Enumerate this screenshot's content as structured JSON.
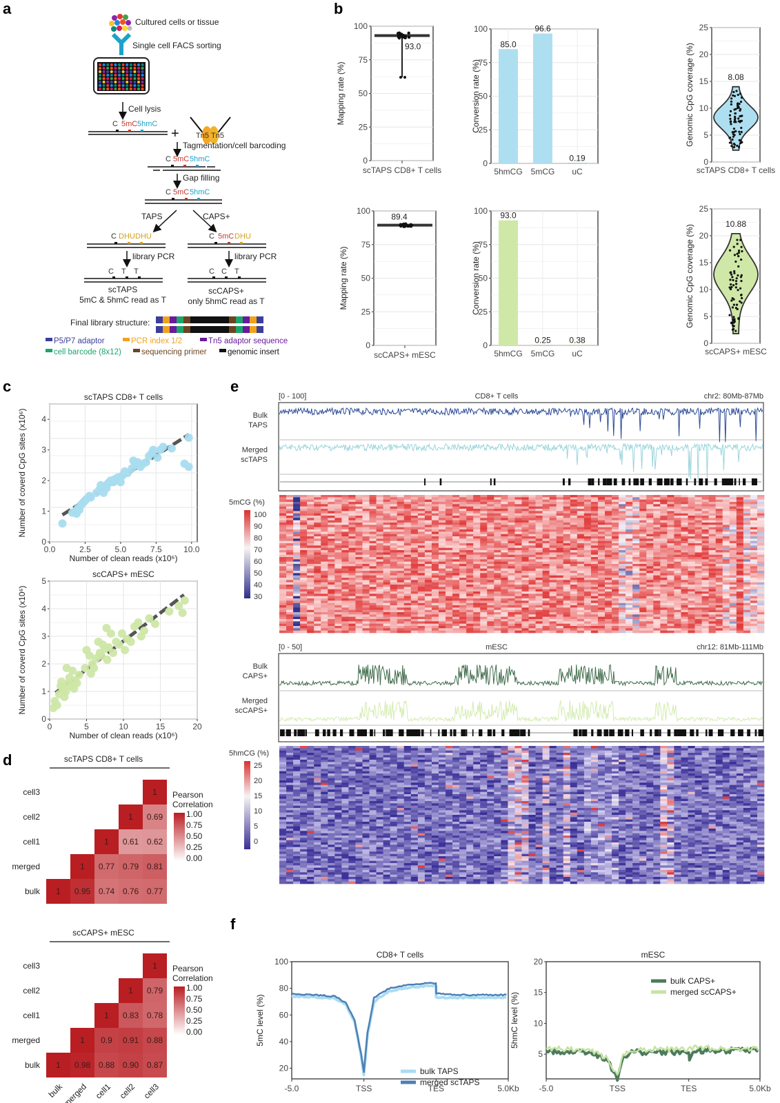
{
  "panels": {
    "a": {
      "letter": "a"
    },
    "b": {
      "letter": "b"
    },
    "c": {
      "letter": "c"
    },
    "d": {
      "letter": "d"
    },
    "e": {
      "letter": "e"
    },
    "f": {
      "letter": "f"
    }
  },
  "schematic": {
    "steps": {
      "cultured": "Cultured cells or tissue",
      "facs": "Single cell FACS sorting",
      "lysis": "Cell lysis",
      "tagmentation": "Tagmentation/cell barcoding",
      "gap": "Gap filling",
      "taps": "TAPS",
      "caps": "CAPS+",
      "pcr_left": "library PCR",
      "pcr_right": "library PCR",
      "final": "Final library structure:"
    },
    "bases": {
      "C": "C",
      "mC": "5mC",
      "hmC": "5hmC",
      "DHU": "DHU",
      "T": "T",
      "tn5a": "Tn5",
      "tn5b": "Tn5",
      "plus": "+"
    },
    "outcomes": {
      "left_title": "scTAPS",
      "left_sub": "5mC & 5hmC read as T",
      "right_title": "scCAPS+",
      "right_sub": "only 5hmC read as T"
    },
    "legend": [
      {
        "label": "P5/P7 adaptor",
        "color": "#3b3f9a"
      },
      {
        "label": "PCR index 1/2",
        "color": "#f0a21e"
      },
      {
        "label": "Tn5 adaptor sequence",
        "color": "#6a1b9a"
      },
      {
        "label": "cell barcode (8x12)",
        "color": "#1aa66b"
      },
      {
        "label": "sequencing primer",
        "color": "#6b4423"
      },
      {
        "label": "genomic insert",
        "color": "#111111"
      }
    ],
    "colors": {
      "mC": "#c0392b",
      "hmC": "#1aa3c9",
      "DHU": "#d4a017"
    }
  },
  "chart_data": [
    {
      "id": "b-mapping-taps",
      "type": "box",
      "title": "",
      "xlabel": "scTAPS CD8+ T cells",
      "ylabel": "Mapping rate (%)",
      "ylim": [
        0,
        100
      ],
      "yticks": [
        "0",
        "25",
        "50",
        "75",
        "100"
      ],
      "median": 93.0,
      "median_label": "93.0",
      "min": 62,
      "max": 95,
      "color": "#222222"
    },
    {
      "id": "b-conversion-taps",
      "type": "bar",
      "categories": [
        "5hmCG",
        "5mCG",
        "uC"
      ],
      "values": [
        85.0,
        96.6,
        0.19
      ],
      "labels": [
        "85.0",
        "96.6",
        "0.19"
      ],
      "ylabel": "Conversion rate (%)",
      "ylim": [
        0,
        100
      ],
      "yticks": [
        "0",
        "25",
        "50",
        "75",
        "100"
      ],
      "color": "#aedff0"
    },
    {
      "id": "b-coverage-taps",
      "type": "violin",
      "xlabel": "scTAPS CD8+ T cells",
      "ylabel": "Genomic CpG coverage (%)",
      "ylim": [
        0,
        25
      ],
      "yticks": [
        "0",
        "5",
        "10",
        "15",
        "20",
        "25"
      ],
      "median_label": "8.08",
      "range": [
        2.2,
        14.0
      ],
      "mode": 8.3,
      "color": "#aedff0"
    },
    {
      "id": "b-mapping-caps",
      "type": "box",
      "xlabel": "scCAPS+ mESC",
      "ylabel": "Mapping rate (%)",
      "ylim": [
        0,
        100
      ],
      "yticks": [
        "0",
        "25",
        "50",
        "75",
        "100"
      ],
      "median": 89.4,
      "median_label": "89.4",
      "min": 88,
      "max": 90.5,
      "color": "#222222"
    },
    {
      "id": "b-conversion-caps",
      "type": "bar",
      "categories": [
        "5hmCG",
        "5mCG",
        "uC"
      ],
      "values": [
        93.0,
        0.25,
        0.38
      ],
      "labels": [
        "93.0",
        "0.25",
        "0.38"
      ],
      "ylabel": "Conversion rate (%)",
      "ylim": [
        0,
        100
      ],
      "yticks": [
        "0",
        "25",
        "50",
        "75",
        "100"
      ],
      "color": "#cfe8a8"
    },
    {
      "id": "b-coverage-caps",
      "type": "violin",
      "xlabel": "scCAPS+ mESC",
      "ylabel": "Genomic CpG coverage (%)",
      "ylim": [
        0,
        25
      ],
      "yticks": [
        "0",
        "5",
        "10",
        "15",
        "20",
        "25"
      ],
      "median_label": "10.88",
      "range": [
        1.8,
        20.4
      ],
      "mode": 12.8,
      "color": "#cfe8a8"
    },
    {
      "id": "c-scatter-taps",
      "type": "scatter",
      "title": "scTAPS CD8+ T cells",
      "xlabel": "Number of clean reads (x10⁶)",
      "ylabel": "Number of coverd CpG sites (x10⁶)",
      "xlim": [
        0,
        10.4
      ],
      "ylim": [
        0,
        4.5
      ],
      "xticks": [
        "0.0",
        "2.5",
        "5.0",
        "7.5",
        "10.0"
      ],
      "yticks": [
        "0",
        "1",
        "2",
        "3",
        "4"
      ],
      "fit": [
        [
          0.9,
          0.88
        ],
        [
          9.8,
          3.5
        ]
      ],
      "color": "#a9dcef",
      "points": [
        [
          0.9,
          0.6
        ],
        [
          1.6,
          0.95
        ],
        [
          1.8,
          1.0
        ],
        [
          1.9,
          0.92
        ],
        [
          2.0,
          1.1
        ],
        [
          2.1,
          1.05
        ],
        [
          2.2,
          1.2
        ],
        [
          2.3,
          1.25
        ],
        [
          2.4,
          1.3
        ],
        [
          2.5,
          1.35
        ],
        [
          2.6,
          1.4
        ],
        [
          2.8,
          1.5
        ],
        [
          2.9,
          1.45
        ],
        [
          3.3,
          1.6
        ],
        [
          3.5,
          1.7
        ],
        [
          3.6,
          1.85
        ],
        [
          3.8,
          1.6
        ],
        [
          3.9,
          1.8
        ],
        [
          4.0,
          1.75
        ],
        [
          4.1,
          1.9
        ],
        [
          4.2,
          1.95
        ],
        [
          4.3,
          2.0
        ],
        [
          4.5,
          1.95
        ],
        [
          4.6,
          2.05
        ],
        [
          4.8,
          2.1
        ],
        [
          4.9,
          2.0
        ],
        [
          5.0,
          1.95
        ],
        [
          5.1,
          2.15
        ],
        [
          5.2,
          2.2
        ],
        [
          5.3,
          2.3
        ],
        [
          5.5,
          2.25
        ],
        [
          5.8,
          2.4
        ],
        [
          5.9,
          2.65
        ],
        [
          6.1,
          2.5
        ],
        [
          6.2,
          2.6
        ],
        [
          6.4,
          2.45
        ],
        [
          6.6,
          2.55
        ],
        [
          6.8,
          2.6
        ],
        [
          7.0,
          2.8
        ],
        [
          7.2,
          2.9
        ],
        [
          7.3,
          3.0
        ],
        [
          7.6,
          2.75
        ],
        [
          7.8,
          3.0
        ],
        [
          8.0,
          3.1
        ],
        [
          8.6,
          3.05
        ],
        [
          9.5,
          2.55
        ],
        [
          9.8,
          2.45
        ],
        [
          9.8,
          3.4
        ]
      ]
    },
    {
      "id": "c-scatter-caps",
      "type": "scatter",
      "title": "scCAPS+ mESC",
      "xlabel": "Number of clean reads (x10⁶)",
      "ylabel": "Number of coverd CpG sites (x10⁶)",
      "xlim": [
        0,
        20
      ],
      "ylim": [
        0,
        5
      ],
      "xticks": [
        "0",
        "5",
        "10",
        "15",
        "20"
      ],
      "yticks": [
        "0",
        "1",
        "2",
        "3",
        "4",
        "5"
      ],
      "fit": [
        [
          0.8,
          0.95
        ],
        [
          18.2,
          4.5
        ]
      ],
      "color": "#cde7a6",
      "points": [
        [
          0.5,
          0.4
        ],
        [
          0.7,
          0.65
        ],
        [
          1.0,
          0.5
        ],
        [
          1.3,
          0.9
        ],
        [
          1.5,
          1.2
        ],
        [
          1.6,
          1.35
        ],
        [
          1.8,
          1.1
        ],
        [
          2.0,
          0.8
        ],
        [
          2.2,
          1.0
        ],
        [
          2.3,
          1.85
        ],
        [
          2.5,
          1.3
        ],
        [
          2.7,
          1.5
        ],
        [
          2.9,
          1.2
        ],
        [
          3.1,
          1.75
        ],
        [
          3.3,
          1.1
        ],
        [
          3.5,
          1.4
        ],
        [
          3.7,
          1.3
        ],
        [
          4.0,
          1.6
        ],
        [
          4.8,
          1.85
        ],
        [
          5.0,
          2.5
        ],
        [
          5.4,
          2.3
        ],
        [
          5.6,
          1.65
        ],
        [
          5.8,
          2.0
        ],
        [
          6.0,
          1.85
        ],
        [
          6.3,
          2.2
        ],
        [
          6.6,
          2.8
        ],
        [
          6.8,
          2.4
        ],
        [
          7.0,
          2.3
        ],
        [
          7.2,
          2.7
        ],
        [
          7.5,
          2.55
        ],
        [
          7.7,
          3.3
        ],
        [
          7.8,
          2.15
        ],
        [
          8.0,
          2.6
        ],
        [
          8.3,
          3.1
        ],
        [
          8.6,
          2.4
        ],
        [
          9.0,
          2.8
        ],
        [
          9.4,
          2.7
        ],
        [
          9.8,
          3.1
        ],
        [
          10.2,
          2.5
        ],
        [
          10.5,
          2.9
        ],
        [
          11.0,
          2.8
        ],
        [
          11.5,
          3.35
        ],
        [
          12.0,
          3.5
        ],
        [
          12.4,
          3.0
        ],
        [
          12.8,
          3.2
        ],
        [
          13.5,
          3.65
        ],
        [
          14.3,
          3.45
        ],
        [
          16.2,
          3.9
        ],
        [
          17.5,
          4.1
        ],
        [
          18.0,
          3.85
        ],
        [
          18.3,
          4.3
        ]
      ]
    },
    {
      "id": "d-corr-taps",
      "type": "heatmap",
      "title": "scTAPS CD8+ T cells",
      "rows": [
        "cell3",
        "cell2",
        "cell1",
        "merged",
        "bulk"
      ],
      "cols": [
        "bulk",
        "merged",
        "cell1",
        "cell2",
        "cell3"
      ],
      "cells": [
        [
          null,
          null,
          null,
          null,
          "1"
        ],
        [
          null,
          null,
          null,
          "1",
          "0.69"
        ],
        [
          null,
          null,
          "1",
          "0.61",
          "0.62"
        ],
        [
          null,
          "1",
          "0.77",
          "0.79",
          "0.81"
        ],
        [
          "1",
          "0.95",
          "0.74",
          "0.76",
          "0.77"
        ]
      ],
      "legend_title": "Pearson Correlation",
      "legend_ticks": [
        "1.00",
        "0.75",
        "0.50",
        "0.25",
        "0.00"
      ]
    },
    {
      "id": "d-corr-caps",
      "type": "heatmap",
      "title": "scCAPS+ mESC",
      "rows": [
        "cell3",
        "cell2",
        "cell1",
        "merged",
        "bulk"
      ],
      "cols": [
        "bulk",
        "merged",
        "cell1",
        "cell2",
        "cell3"
      ],
      "cells": [
        [
          null,
          null,
          null,
          null,
          "1"
        ],
        [
          null,
          null,
          null,
          "1",
          "0.79"
        ],
        [
          null,
          null,
          "1",
          "0.83",
          "0.78"
        ],
        [
          null,
          "1",
          "0.9",
          "0.91",
          "0.88"
        ],
        [
          "1",
          "0.98",
          "0.88",
          "0.90",
          "0.87"
        ]
      ],
      "legend_title": "Pearson Correlation",
      "legend_ticks": [
        "1.00",
        "0.75",
        "0.50",
        "0.25",
        "0.00"
      ]
    },
    {
      "id": "f-profile-taps",
      "type": "line",
      "title": "CD8+ T cells",
      "ylabel": "5mC level (%)",
      "ylim": [
        12,
        100
      ],
      "yticks": [
        "20",
        "40",
        "60",
        "80",
        "100"
      ],
      "xticks": [
        "-5.0",
        "TSS",
        "TES",
        "5.0Kb"
      ],
      "series": [
        {
          "name": "bulk TAPS",
          "color": "#aadcf2",
          "points": [
            [
              0,
              74
            ],
            [
              0.1,
              73.5
            ],
            [
              0.2,
              72.5
            ],
            [
              0.25,
              68
            ],
            [
              0.29,
              55
            ],
            [
              0.32,
              30
            ],
            [
              0.333,
              15
            ],
            [
              0.35,
              45
            ],
            [
              0.38,
              70
            ],
            [
              0.45,
              78
            ],
            [
              0.55,
              81
            ],
            [
              0.666,
              82
            ],
            [
              0.667,
              73
            ],
            [
              0.8,
              73
            ],
            [
              1,
              73
            ]
          ]
        },
        {
          "name": "merged scTAPS",
          "color": "#4e7fb4",
          "points": [
            [
              0,
              76
            ],
            [
              0.1,
              75
            ],
            [
              0.2,
              74
            ],
            [
              0.25,
              69
            ],
            [
              0.29,
              56
            ],
            [
              0.32,
              31
            ],
            [
              0.333,
              17
            ],
            [
              0.35,
              47
            ],
            [
              0.38,
              73
            ],
            [
              0.45,
              80
            ],
            [
              0.55,
              83
            ],
            [
              0.666,
              84
            ],
            [
              0.667,
              76
            ],
            [
              0.8,
              75
            ],
            [
              1,
              75
            ]
          ]
        }
      ]
    },
    {
      "id": "f-profile-caps",
      "type": "line",
      "title": "mESC",
      "ylabel": "5hmC level (%)",
      "ylim": [
        1,
        20
      ],
      "yticks": [
        "5",
        "10",
        "15",
        "20"
      ],
      "xticks": [
        "-5.0",
        "TSS",
        "TES",
        "5.0Kb"
      ],
      "series": [
        {
          "name": "bulk CAPS+",
          "color": "#4d7a5c",
          "points": [
            [
              0,
              5.5
            ],
            [
              0.2,
              5.4
            ],
            [
              0.28,
              4.2
            ],
            [
              0.333,
              1.2
            ],
            [
              0.36,
              4.5
            ],
            [
              0.4,
              5.3
            ],
            [
              0.666,
              5.3
            ],
            [
              0.67,
              4.3
            ],
            [
              0.7,
              5.6
            ],
            [
              1,
              5.6
            ]
          ]
        },
        {
          "name": "merged scCAPS+",
          "color": "#c6e3a2",
          "points": [
            [
              0,
              5.9
            ],
            [
              0.2,
              5.7
            ],
            [
              0.28,
              4.5
            ],
            [
              0.333,
              1.3
            ],
            [
              0.36,
              4.8
            ],
            [
              0.4,
              5.8
            ],
            [
              0.666,
              5.8
            ],
            [
              0.7,
              6.0
            ],
            [
              1,
              5.9
            ]
          ]
        }
      ]
    }
  ],
  "browser": {
    "cd8": {
      "range": "[0 - 100]",
      "title": "CD8+ T cells",
      "locus": "chr2: 80Mb-87Mb",
      "track1": [
        "Bulk",
        "TAPS"
      ],
      "track2": [
        "Merged",
        "scTAPS"
      ],
      "track1_color": "#2b4a97",
      "track2_color": "#9ad4dc",
      "heat_label": "5mCG (%)",
      "heat_ticks": [
        "100",
        "90",
        "80",
        "70",
        "60",
        "50",
        "40",
        "30"
      ]
    },
    "mesc": {
      "range": "[0 - 50]",
      "title": "mESC",
      "locus": "chr12: 81Mb-111Mb",
      "track1": [
        "Bulk",
        "CAPS+"
      ],
      "track2": [
        "Merged",
        "scCAPS+"
      ],
      "track1_color": "#3e6b4a",
      "track2_color": "#d4ebb0",
      "heat_label": "5hmCG (%)",
      "heat_ticks": [
        "25",
        "20",
        "15",
        "10",
        "5",
        "0"
      ]
    }
  }
}
